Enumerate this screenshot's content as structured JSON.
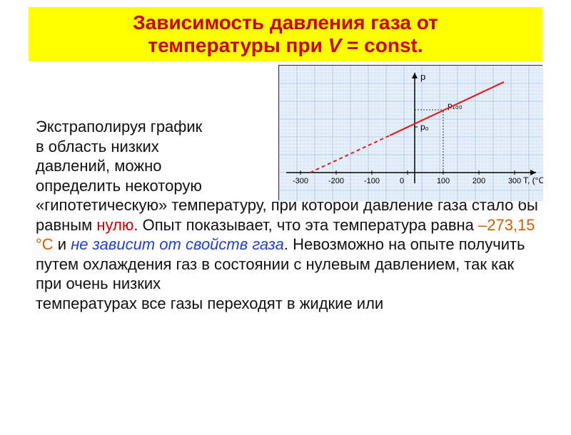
{
  "title": {
    "line1": "Зависимость давления газа от",
    "line2": "температуры при ",
    "varV": "V",
    "eq": " = const."
  },
  "text": {
    "p1a": "Экстраполируя график",
    "p1b": " в область низких",
    "p1c": "давлений, можно",
    "p1d": " определить некоторую",
    "p1e": " «гипотетическую» температуру, при которой давление газа стало бы равным ",
    "zero": "нулю",
    "p2a": ". Опыт показывает, что эта температура равна ",
    "temp": "–273,15 °С",
    "and": " и ",
    "noDep": "не зависит от свойств газа",
    "p3": ". Невозможно на опыте получить путем охлаждения газ в состоянии с нулевым давлением, так как при очень низких",
    "p4": "температурах все газы переходят в жидкие или"
  },
  "chart": {
    "type": "line",
    "xlabel": "T, (°C)",
    "ylabel": "p",
    "p0_label": "p₀",
    "p100_label": "p₁₀₀",
    "xticks": [
      -300,
      -200,
      -100,
      0,
      100,
      200,
      300
    ],
    "xlim": [
      -320,
      340
    ],
    "grid_color": "#8aa8d8",
    "axis_color": "#000000",
    "line_color": "#e02020",
    "dash_color": "#e02020",
    "tick_mark_x": 100,
    "background": "#e6f0fa",
    "plot": {
      "dashed_from": [
        -273,
        0
      ],
      "dashed_to": [
        -50,
        52
      ],
      "solid_from": [
        -50,
        52
      ],
      "solid_to": [
        270,
        127
      ]
    },
    "guides": {
      "p0_y": 64,
      "p100_y": 88
    }
  }
}
